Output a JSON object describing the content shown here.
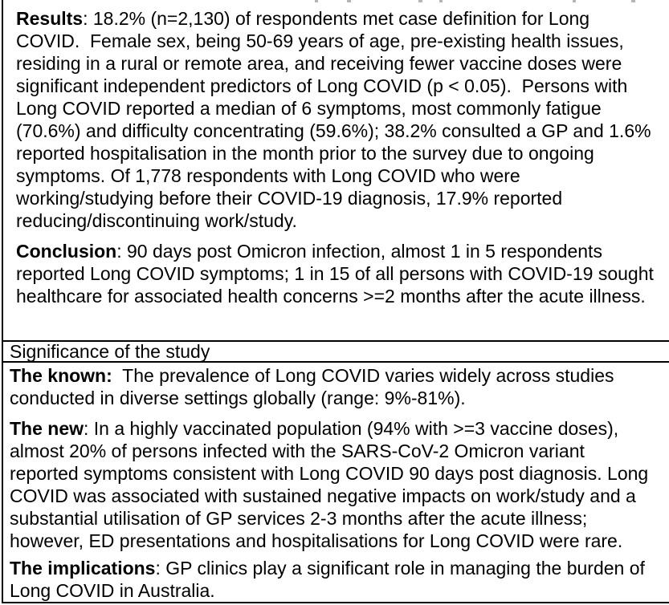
{
  "abstract": {
    "results": {
      "label": "Results",
      "sep": ": ",
      "text": "18.2% (n=2,130) of respondents met case definition for Long\nCOVID.  Female sex, being 50-69 years of age, pre-existing health issues,\nresiding in a rural or remote area, and receiving fewer vaccine doses were\nsignificant independent predictors of Long COVID (p < 0.05).  Persons with\nLong COVID reported a median of 6 symptoms, most commonly fatigue\n(70.6%) and difficulty concentrating (59.6%); 38.2% consulted a GP and 1.6%\nreported hospitalisation in the month prior to the survey due to ongoing\nsymptoms. Of 1,778 respondents with Long COVID who were\nworking/studying before their COVID-19 diagnosis, 17.9% reported\nreducing/discontinuing work/study."
    },
    "conclusion": {
      "label": "Conclusion",
      "sep": ": ",
      "text": "90 days post Omicron infection, almost 1 in 5 respondents\nreported Long COVID symptoms; 1 in 15 of all persons with COVID-19 sought\nhealthcare for associated health concerns >=2 months after the acute illness."
    }
  },
  "significance": {
    "header": "Significance of the study",
    "known": {
      "label": "The known:",
      "sep": "  ",
      "text": "The prevalence of Long COVID varies widely across studies\nconducted in diverse settings globally (range: 9%-81%)."
    },
    "new": {
      "label": "The new",
      "sep": ": ",
      "text": "In a highly vaccinated population (94% with >=3 vaccine doses),\nalmost 20% of persons infected with the SARS-CoV-2 Omicron variant\nreported symptoms consistent with Long COVID 90 days post diagnosis. Long\nCOVID was associated with sustained negative impacts on work/study and a\nsubstantial utilisation of GP services 2-3 months after the acute illness;\nhowever, ED presentations and hospitalisations for Long COVID were rare."
    },
    "implications": {
      "label": "The implications",
      "sep": ": ",
      "text": "GP clinics play a significant role in managing the burden of\nLong COVID in Australia."
    }
  },
  "colors": {
    "text": "#000000",
    "border": "#000000",
    "background": "#ffffff",
    "cropped_fragment_gray": "#b4b4b4"
  }
}
